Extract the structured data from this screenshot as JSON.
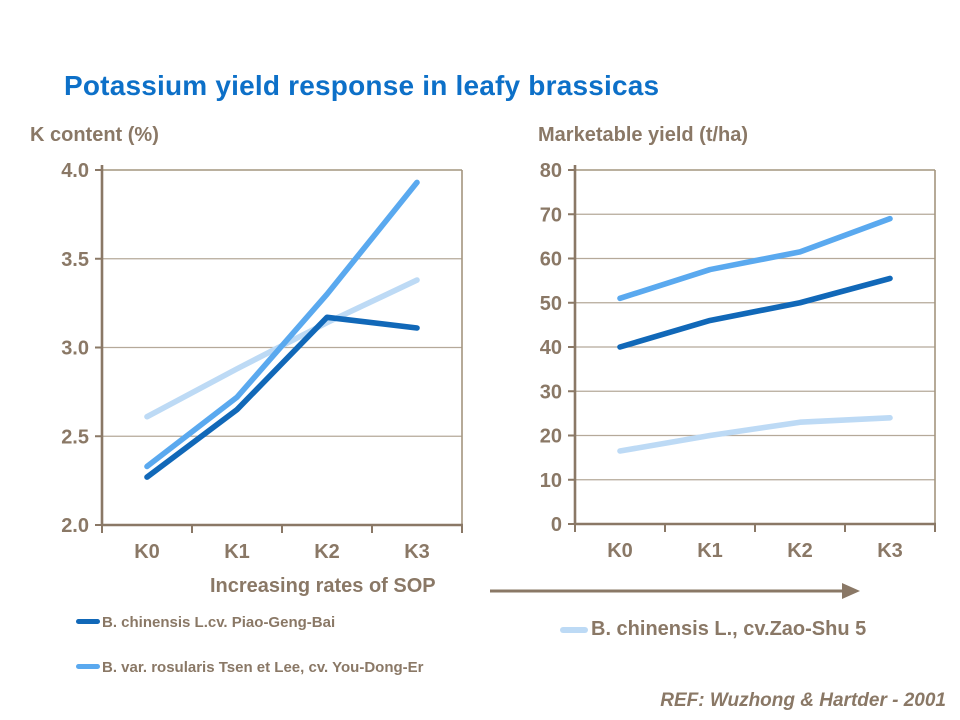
{
  "title": "Potassium yield response in leafy brassicas",
  "colors": {
    "title": "#0d70c8",
    "text": "#8a7866",
    "axis": "#8a7866",
    "gridline": "#b5a99a",
    "border": "#a3957f",
    "series_dark_blue": "#1168b8",
    "series_medium_blue": "#5aa9ef",
    "series_light_blue": "#bddaf5"
  },
  "x_axis_caption": "Increasing rates of SOP",
  "arrow_icon": "right-arrow",
  "legend": {
    "left": [
      {
        "label": "B. chinensis L.cv. Piao-Geng-Bai",
        "color": "#1168b8"
      },
      {
        "label": "B. var. rosularis Tsen et Lee, cv. You-Dong-Er",
        "color": "#5aa9ef"
      }
    ],
    "right": [
      {
        "label": "B. chinensis L., cv.Zao-Shu 5",
        "color": "#bddaf5"
      }
    ]
  },
  "footer": {
    "reference": "REF: Wuzhong & Hartder - 2001"
  },
  "chart_data": [
    {
      "type": "line",
      "title": "K content (%)",
      "categories": [
        "K0",
        "K1",
        "K2",
        "K3"
      ],
      "series": [
        {
          "name": "B. chinensis L., cv.Zao-Shu 5",
          "color": "#bddaf5",
          "values": [
            2.61,
            2.88,
            3.14,
            3.38
          ]
        },
        {
          "name": "B. var. rosularis Tsen et Lee, cv. You-Dong-Er",
          "color": "#5aa9ef",
          "values": [
            2.33,
            2.72,
            3.3,
            3.93
          ]
        },
        {
          "name": "B. chinensis L.cv. Piao-Geng-Bai",
          "color": "#1168b8",
          "values": [
            2.27,
            2.65,
            3.17,
            3.11
          ]
        }
      ],
      "ylim": [
        2.0,
        4.0
      ],
      "ystep": 0.5,
      "y_format": "1dp",
      "grid": true,
      "xlabel": "Increasing rates of SOP",
      "legend_position": "below"
    },
    {
      "type": "line",
      "title": "Marketable yield (t/ha)",
      "categories": [
        "K0",
        "K1",
        "K2",
        "K3"
      ],
      "series": [
        {
          "name": "B. chinensis L., cv.Zao-Shu 5",
          "color": "#bddaf5",
          "values": [
            16.5,
            20,
            23,
            24
          ]
        },
        {
          "name": "B. var. rosularis Tsen et Lee, cv. You-Dong-Er",
          "color": "#5aa9ef",
          "values": [
            51,
            57.5,
            61.5,
            69
          ]
        },
        {
          "name": "B. chinensis L.cv. Piao-Geng-Bai",
          "color": "#1168b8",
          "values": [
            40,
            46,
            50,
            55.5
          ]
        }
      ],
      "ylim": [
        0,
        80
      ],
      "ystep": 10,
      "y_format": "int",
      "grid": true,
      "xlabel": "Increasing rates of SOP",
      "legend_position": "below"
    }
  ]
}
